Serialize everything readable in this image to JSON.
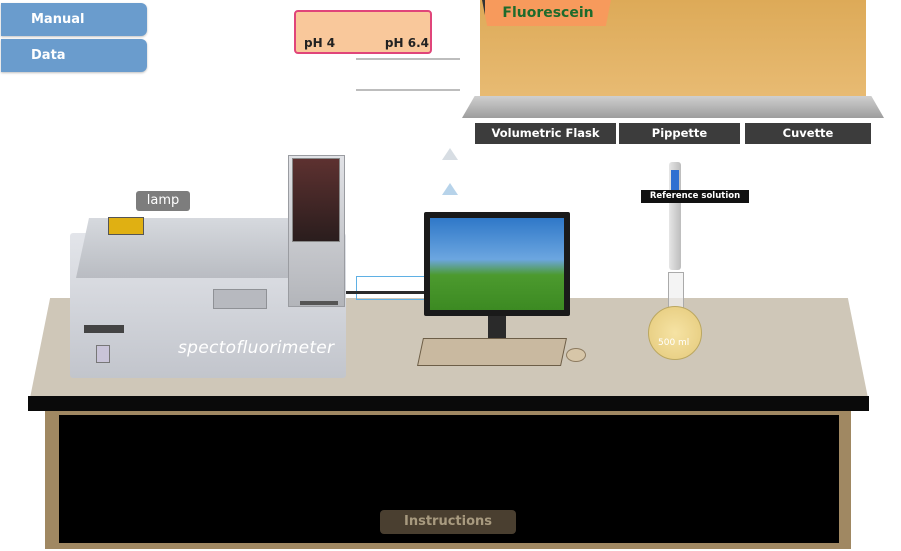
{
  "menu": {
    "manual_label": "Manual",
    "data_label": "Data"
  },
  "ph_selector": {
    "left_label": "pH 4",
    "right_label": "pH 6.4"
  },
  "shelf": {
    "chemical_tab": "Fluorescein"
  },
  "tools": {
    "flask": "Volumetric Flask",
    "pipette": "Pippette",
    "cuvette": "Cuvette"
  },
  "instrument": {
    "name": "spectofluorimeter",
    "lamp_label": "lamp"
  },
  "flask": {
    "volume_label": "500 ml",
    "reference_label": "Reference solution"
  },
  "footer": {
    "instructions_label": "Instructions"
  },
  "colors": {
    "menu": "#6a9ccd",
    "ph_fill": "#f9c89b",
    "ph_border": "#e0457a",
    "shelf": "#e2b064",
    "tab": "#f79a5c",
    "tab_text": "#1e6b2c",
    "table": "#cfc7b8"
  }
}
